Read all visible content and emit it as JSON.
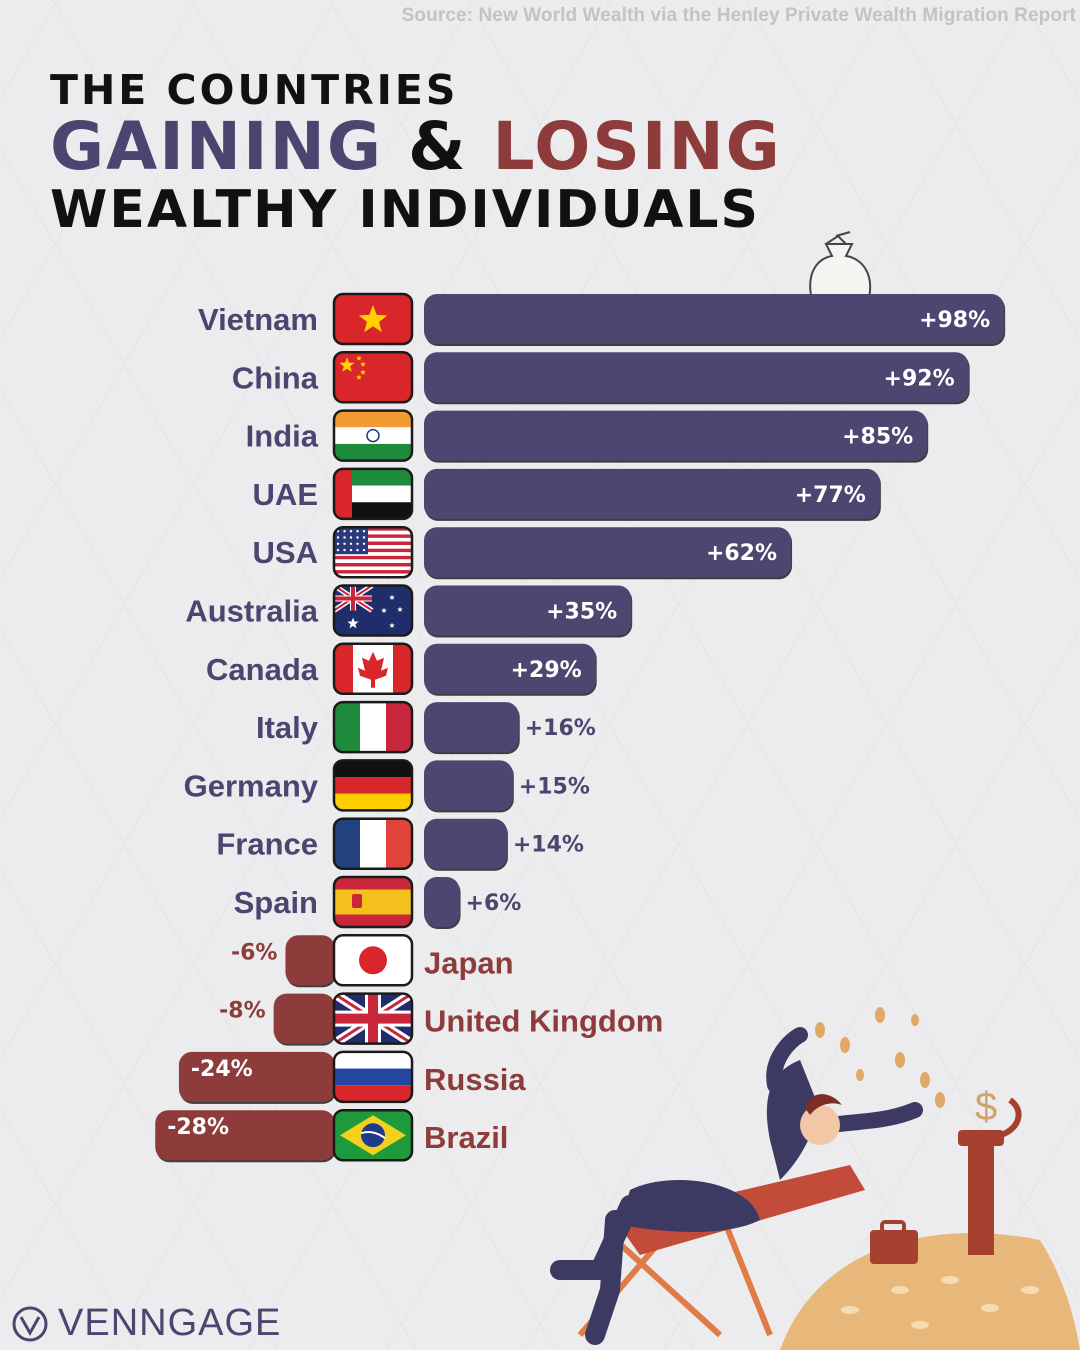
{
  "source": "Source: New World Wealth via the Henley Private Wealth Migration Report",
  "title": {
    "line1": "THE COUNTRIES",
    "gaining": "GAINING",
    "amp": "&",
    "losing": "LOSING",
    "line3": "WEALTHY INDIVIDUALS"
  },
  "brand": "VENNGAGE",
  "colors": {
    "gain": "#4b4670",
    "lose": "#8e3b3b",
    "background": "#ecebed"
  },
  "chart_data": {
    "type": "bar",
    "orientation": "horizontal",
    "categories": [
      "Vietnam",
      "China",
      "India",
      "UAE",
      "USA",
      "Australia",
      "Canada",
      "Italy",
      "Germany",
      "France",
      "Spain",
      "Japan",
      "United Kingdom",
      "Russia",
      "Brazil"
    ],
    "values": [
      98,
      92,
      85,
      77,
      62,
      35,
      29,
      16,
      15,
      14,
      6,
      -6,
      -8,
      -24,
      -28
    ],
    "labels": [
      "+98%",
      "+92%",
      "+85%",
      "+77%",
      "+62%",
      "+35%",
      "+29%",
      "+16%",
      "+15%",
      "+14%",
      "+6%",
      "-6%",
      "-8%",
      "-24%",
      "-28%"
    ],
    "flags": [
      "vietnam-flag",
      "china-flag",
      "india-flag",
      "uae-flag",
      "usa-flag",
      "australia-flag",
      "canada-flag",
      "italy-flag",
      "germany-flag",
      "france-flag",
      "spain-flag",
      "japan-flag",
      "uk-flag",
      "russia-flag",
      "brazil-flag"
    ],
    "unit": "%",
    "grid": false
  }
}
